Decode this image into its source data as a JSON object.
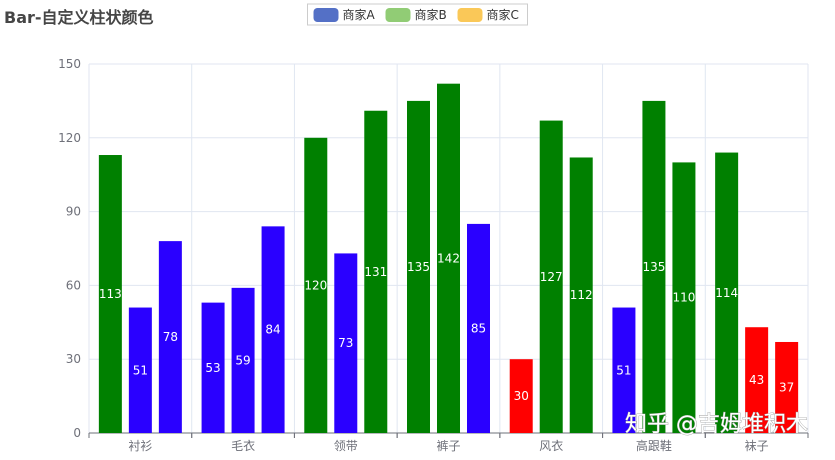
{
  "chart_data": {
    "type": "bar",
    "title": "Bar-自定义柱状颜色",
    "legend": [
      "商家A",
      "商家B",
      "商家C"
    ],
    "legend_colors": [
      "#5470c6",
      "#91cc75",
      "#fac858"
    ],
    "legend_position": "top-center",
    "categories": [
      "衬衫",
      "毛衣",
      "领带",
      "裤子",
      "风衣",
      "高跟鞋",
      "袜子"
    ],
    "series": [
      {
        "name": "商家A",
        "values": [
          113,
          53,
          120,
          135,
          30,
          51,
          114
        ]
      },
      {
        "name": "商家B",
        "values": [
          51,
          59,
          73,
          142,
          127,
          135,
          43
        ]
      },
      {
        "name": "商家C",
        "values": [
          78,
          84,
          131,
          85,
          112,
          110,
          37
        ]
      }
    ],
    "bar_color_rule": {
      "low_threshold": 50,
      "high_threshold": 100,
      "low_color": "#ff0000",
      "mid_color": "#2a00ff",
      "high_color": "#008000"
    },
    "ylim": [
      0,
      150
    ],
    "yticks": [
      0,
      30,
      60,
      90,
      120,
      150
    ],
    "grid": true,
    "xlabel": "",
    "ylabel": ""
  },
  "watermark": "知乎 @吉姆堆积木"
}
